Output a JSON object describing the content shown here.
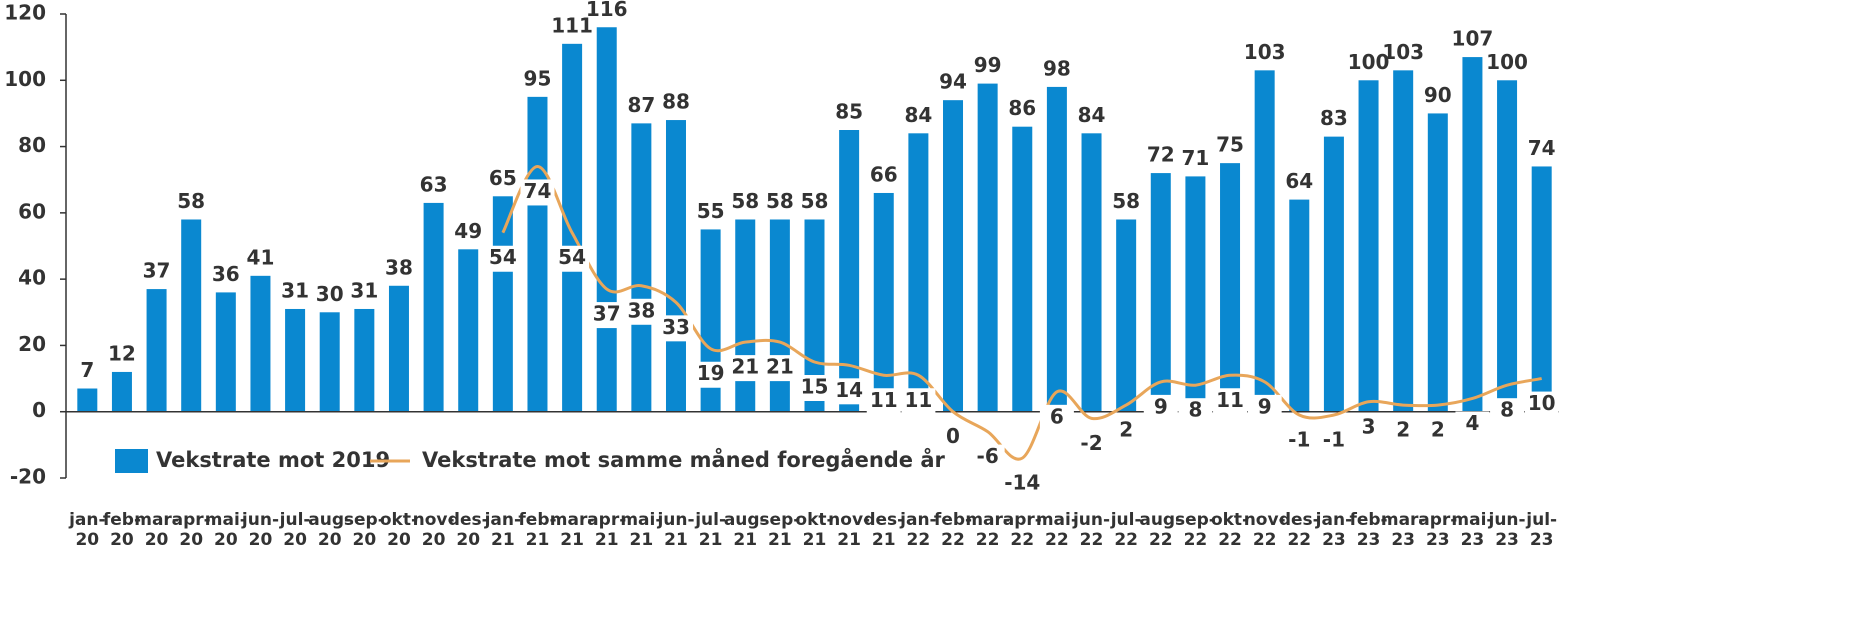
{
  "chart_data": {
    "type": "bar-line",
    "categories": [
      "jan-20",
      "feb-20",
      "mar-20",
      "apr-20",
      "mai-20",
      "jun-20",
      "jul-20",
      "aug-20",
      "sep-20",
      "okt-20",
      "nov-20",
      "des-20",
      "jan-21",
      "feb-21",
      "mar-21",
      "apr-21",
      "mai-21",
      "jun-21",
      "jul-21",
      "aug-21",
      "sep-21",
      "okt-21",
      "nov-21",
      "des-21",
      "jan-22",
      "feb-22",
      "mar-22",
      "apr-22",
      "mai-22",
      "jun-22",
      "jul-22",
      "aug-22",
      "sep-22",
      "okt-22",
      "nov-22",
      "des-22",
      "jan-23",
      "feb-23",
      "mar-23",
      "apr-23",
      "mai-23",
      "jun-23",
      "jul-23"
    ],
    "series": [
      {
        "name": "Vekstrate mot 2019",
        "type": "bar",
        "color": "#0a88d0",
        "values": [
          7,
          12,
          37,
          58,
          36,
          41,
          31,
          30,
          31,
          38,
          63,
          49,
          65,
          95,
          111,
          116,
          87,
          88,
          55,
          58,
          58,
          58,
          85,
          66,
          84,
          94,
          99,
          86,
          98,
          84,
          58,
          72,
          71,
          75,
          103,
          64,
          83,
          100,
          103,
          90,
          107,
          100,
          74
        ]
      },
      {
        "name": "Vekstrate mot samme måned foregående år",
        "type": "line",
        "color": "#e8a65a",
        "values": [
          null,
          null,
          null,
          null,
          null,
          null,
          null,
          null,
          null,
          null,
          null,
          null,
          54,
          74,
          54,
          37,
          38,
          33,
          19,
          21,
          21,
          15,
          14,
          11,
          11,
          0,
          -6,
          -14,
          6,
          -2,
          2,
          9,
          8,
          11,
          9,
          -1,
          -1,
          3,
          2,
          2,
          4,
          8,
          10
        ]
      }
    ],
    "ylim": [
      -20,
      120
    ],
    "yticks": [
      -20,
      0,
      20,
      40,
      60,
      80,
      100,
      120
    ],
    "legend": "lower left"
  }
}
